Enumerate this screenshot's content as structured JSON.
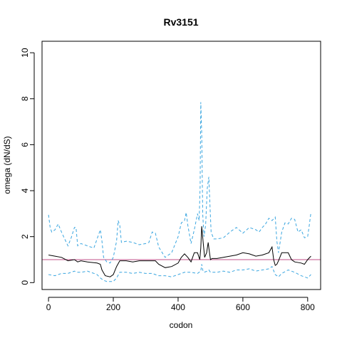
{
  "chart_data": {
    "type": "line",
    "title": "Rv3151",
    "xlabel": "codon",
    "ylabel": "omega (dN/dS)",
    "xlim": [
      -20,
      840
    ],
    "ylim": [
      -0.3,
      10.5
    ],
    "x_ticks": [
      0,
      200,
      400,
      600,
      800
    ],
    "y_ticks": [
      0,
      2,
      4,
      6,
      8,
      10
    ],
    "grid": false,
    "legend": "none",
    "reference_line": {
      "y": 1,
      "color": "#c0508a"
    },
    "series": [
      {
        "role": "estimate",
        "color": "#000000",
        "dashed": false,
        "x": [
          0,
          20,
          40,
          60,
          80,
          90,
          100,
          120,
          150,
          160,
          165,
          175,
          190,
          200,
          210,
          220,
          240,
          260,
          280,
          300,
          320,
          330,
          340,
          360,
          380,
          400,
          410,
          420,
          430,
          440,
          450,
          460,
          467,
          470,
          473,
          477,
          482,
          488,
          493,
          496,
          500,
          505,
          520,
          540,
          560,
          580,
          600,
          620,
          640,
          660,
          680,
          690,
          695,
          700,
          705,
          710,
          720,
          740,
          750,
          760,
          780,
          790,
          800,
          810
        ],
        "y": [
          1.2,
          1.15,
          1.1,
          0.95,
          1.0,
          0.9,
          0.95,
          0.9,
          0.85,
          0.8,
          0.55,
          0.3,
          0.25,
          0.35,
          0.7,
          0.95,
          0.95,
          0.9,
          0.95,
          0.95,
          0.95,
          0.95,
          0.8,
          0.65,
          0.7,
          0.85,
          1.1,
          1.25,
          1.1,
          0.9,
          1.3,
          1.3,
          1.0,
          1.5,
          2.45,
          1.8,
          1.1,
          1.3,
          1.75,
          1.4,
          1.0,
          1.05,
          1.05,
          1.1,
          1.15,
          1.2,
          1.3,
          1.25,
          1.15,
          1.2,
          1.3,
          1.55,
          1.0,
          0.75,
          0.8,
          0.95,
          1.3,
          1.3,
          1.0,
          0.9,
          0.85,
          0.8,
          1.0,
          1.15
        ]
      },
      {
        "role": "upper-bound",
        "color": "#3aa6e0",
        "dashed": true,
        "x": [
          0,
          5,
          10,
          20,
          30,
          40,
          50,
          60,
          70,
          80,
          85,
          90,
          100,
          120,
          140,
          160,
          165,
          170,
          180,
          190,
          200,
          210,
          215,
          220,
          225,
          240,
          260,
          280,
          300,
          310,
          320,
          330,
          340,
          360,
          380,
          400,
          410,
          420,
          425,
          430,
          440,
          450,
          460,
          465,
          468,
          470,
          473,
          476,
          480,
          485,
          490,
          495,
          498,
          502,
          510,
          520,
          540,
          560,
          580,
          600,
          620,
          640,
          650,
          660,
          670,
          680,
          690,
          700,
          705,
          710,
          720,
          730,
          740,
          750,
          760,
          770,
          780,
          790,
          800,
          805,
          810
        ],
        "y": [
          2.95,
          2.4,
          2.2,
          2.3,
          2.55,
          2.2,
          1.9,
          1.6,
          1.95,
          2.4,
          2.4,
          1.6,
          1.7,
          1.6,
          1.5,
          2.3,
          1.8,
          1.1,
          0.9,
          0.85,
          1.1,
          1.8,
          2.7,
          2.5,
          1.75,
          1.8,
          1.75,
          1.65,
          1.7,
          1.75,
          2.2,
          2.15,
          1.55,
          1.1,
          1.3,
          2.0,
          2.6,
          2.7,
          3.05,
          2.5,
          1.7,
          2.3,
          3.0,
          2.7,
          4.2,
          7.85,
          6.5,
          3.0,
          2.0,
          2.5,
          4.1,
          4.6,
          3.5,
          2.2,
          1.9,
          1.9,
          1.95,
          2.2,
          2.4,
          2.15,
          2.4,
          2.3,
          2.2,
          2.4,
          2.55,
          2.8,
          2.7,
          2.85,
          1.8,
          1.3,
          2.2,
          2.6,
          2.55,
          2.8,
          2.75,
          2.2,
          2.3,
          1.95,
          2.0,
          2.5,
          3.05
        ]
      },
      {
        "role": "lower-bound",
        "color": "#3aa6e0",
        "dashed": true,
        "x": [
          0,
          20,
          40,
          60,
          80,
          90,
          100,
          120,
          150,
          160,
          170,
          180,
          200,
          210,
          220,
          240,
          260,
          280,
          300,
          320,
          340,
          360,
          380,
          400,
          420,
          440,
          460,
          470,
          473,
          476,
          480,
          490,
          495,
          500,
          520,
          540,
          560,
          580,
          600,
          620,
          640,
          660,
          680,
          690,
          700,
          710,
          720,
          740,
          760,
          780,
          800,
          810
        ],
        "y": [
          0.35,
          0.3,
          0.4,
          0.4,
          0.5,
          0.45,
          0.45,
          0.5,
          0.35,
          0.2,
          0.1,
          0.05,
          0.05,
          0.2,
          0.45,
          0.45,
          0.4,
          0.45,
          0.4,
          0.4,
          0.3,
          0.3,
          0.25,
          0.35,
          0.45,
          0.45,
          0.4,
          0.5,
          0.8,
          0.55,
          0.45,
          0.5,
          0.55,
          0.45,
          0.45,
          0.5,
          0.45,
          0.55,
          0.55,
          0.6,
          0.5,
          0.55,
          0.6,
          0.7,
          0.35,
          0.25,
          0.4,
          0.55,
          0.45,
          0.3,
          0.2,
          0.35
        ]
      }
    ]
  }
}
